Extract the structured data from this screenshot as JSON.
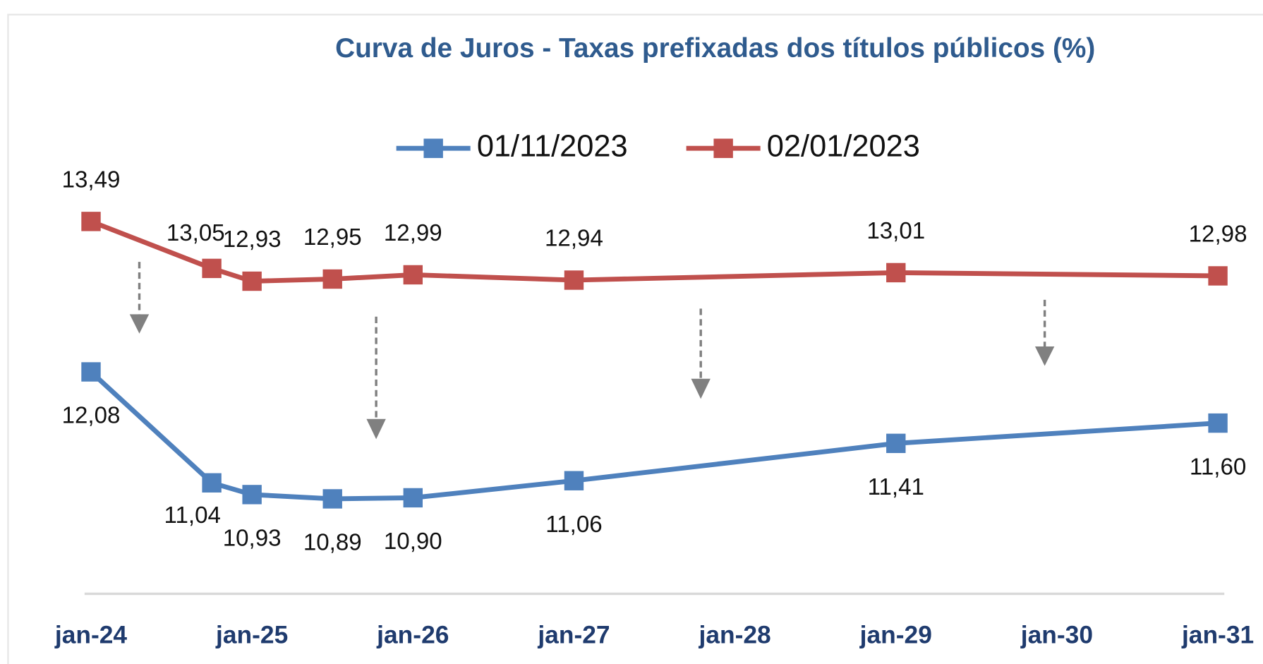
{
  "chart_data": {
    "type": "line",
    "title": "Curva de Juros - Taxas prefixadas dos títulos públicos (%)",
    "x": [
      2024,
      2024.75,
      2025,
      2025.5,
      2026,
      2027,
      2029,
      2031
    ],
    "xlim": [
      2024,
      2031
    ],
    "xticks": [
      {
        "value": 2024,
        "label": "jan-24"
      },
      {
        "value": 2025,
        "label": "jan-25"
      },
      {
        "value": 2026,
        "label": "jan-26"
      },
      {
        "value": 2027,
        "label": "jan-27"
      },
      {
        "value": 2028,
        "label": "jan-28"
      },
      {
        "value": 2029,
        "label": "jan-29"
      },
      {
        "value": 2030,
        "label": "jan-30"
      },
      {
        "value": 2031,
        "label": "jan-31"
      }
    ],
    "ylim": [
      10,
      14.5
    ],
    "series": [
      {
        "name": "01/11/2023",
        "color": "#4f81bd",
        "values": [
          12.08,
          11.04,
          10.93,
          10.89,
          10.9,
          11.06,
          11.41,
          11.6
        ],
        "value_labels": [
          "12,08",
          "11,04",
          "10,93",
          "10,89",
          "10,90",
          "11,06",
          "11,41",
          "11,60"
        ]
      },
      {
        "name": "02/01/2023",
        "color": "#c0504d",
        "values": [
          13.49,
          13.05,
          12.93,
          12.95,
          12.99,
          12.94,
          13.01,
          12.98
        ],
        "value_labels": [
          "13,49",
          "13,05",
          "12,93",
          "12,95",
          "12,99",
          "12,94",
          "13,01",
          "12,98"
        ]
      }
    ]
  }
}
